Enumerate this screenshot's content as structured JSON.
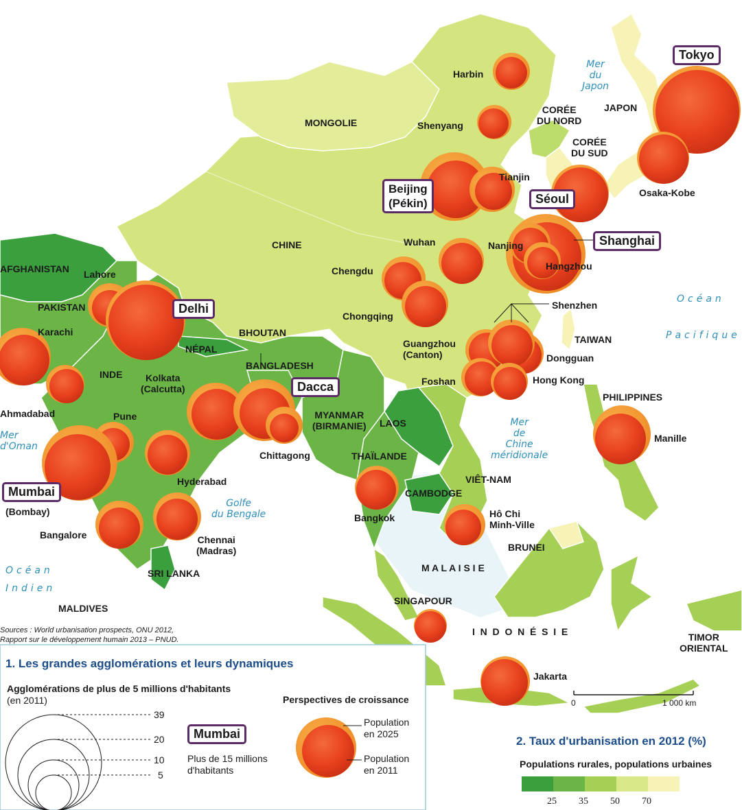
{
  "colors": {
    "sea": "#ffffff",
    "country_25": "#3b9f3e",
    "country_35": "#6bb546",
    "country_50": "#a6cf55",
    "country_70": "#d9e889",
    "country_max": "#f7f3b6",
    "city_2011": "#e8411e",
    "city_2025": "#f0922c",
    "frame": "#5b2a67",
    "legend_title": "#1c4d8a",
    "sea_text": "#2e8fb8"
  },
  "sources": {
    "line1": "Sources : World urbanisation prospects, ONU 2012,",
    "line2": "Rapport sur le développement humain 2013 – PNUD."
  },
  "countries": {
    "afghanistan": "AFGHANISTAN",
    "pakistan": "PAKISTAN",
    "inde": "INDE",
    "nepal": "NÉPAL",
    "bhoutan": "BHOUTAN",
    "bangladesh": "BANGLADESH",
    "chine": "CHINE",
    "mongolie": "MONGOLIE",
    "coree_nord": "CORÉE\nDU NORD",
    "coree_sud": "CORÉE\nDU SUD",
    "japon": "JAPON",
    "taiwan": "TAIWAN",
    "myanmar": "MYANMAR\n(BIRMANIE)",
    "laos": "LAOS",
    "thailande": "THAÏLANDE",
    "cambodge": "CAMBODGE",
    "vietnam": "VIÊT-NAM",
    "philippines": "PHILIPPINES",
    "brunei": "BRUNEI",
    "malaisie": "M A L A I S I E",
    "singapour": "SINGAPOUR",
    "indonesie": "I  N  D  O  N  É  S  I  E",
    "timor": "TIMOR\nORIENTAL",
    "sri_lanka": "SRI LANKA",
    "maldives": "MALDIVES"
  },
  "seas": {
    "mer_japon": "Mer\ndu\nJapon",
    "ocean_pacifique_1": "Océan",
    "ocean_pacifique_2": "Pacifique",
    "mer_chine": "Mer\nde\nChine\nméridionale",
    "golfe_bengale": "Golfe\ndu Bengale",
    "mer_oman": "Mer\nd'Oman",
    "ocean_indien_1": "Océan",
    "ocean_indien_2": "Indien"
  },
  "cities": [
    {
      "id": "harbin",
      "name": "Harbin"
    },
    {
      "id": "shenyang",
      "name": "Shenyang"
    },
    {
      "id": "tianjin",
      "name": "Tianjin"
    },
    {
      "id": "wuhan",
      "name": "Wuhan"
    },
    {
      "id": "nanjing",
      "name": "Nanjing"
    },
    {
      "id": "hangzhou",
      "name": "Hangzhou"
    },
    {
      "id": "chengdu",
      "name": "Chengdu"
    },
    {
      "id": "chongqing",
      "name": "Chongqing"
    },
    {
      "id": "shenzhen",
      "name": "Shenzhen"
    },
    {
      "id": "guangzhou",
      "name": "Guangzhou\n(Canton)"
    },
    {
      "id": "dongguan",
      "name": "Dongguan"
    },
    {
      "id": "foshan",
      "name": "Foshan"
    },
    {
      "id": "hongkong",
      "name": "Hong Kong"
    },
    {
      "id": "osaka",
      "name": "Osaka-Kobe"
    },
    {
      "id": "manille",
      "name": "Manille"
    },
    {
      "id": "bangkok",
      "name": "Bangkok"
    },
    {
      "id": "hochiminh",
      "name": "Hô Chi\nMinh-Ville"
    },
    {
      "id": "jakarta",
      "name": "Jakarta"
    },
    {
      "id": "lahore",
      "name": "Lahore"
    },
    {
      "id": "karachi",
      "name": "Karachi"
    },
    {
      "id": "ahmadabad",
      "name": "Ahmadabad"
    },
    {
      "id": "pune",
      "name": "Pune"
    },
    {
      "id": "kolkata",
      "name": "Kolkata\n(Calcutta)"
    },
    {
      "id": "chittagong",
      "name": "Chittagong"
    },
    {
      "id": "hyderabad",
      "name": "Hyderabad"
    },
    {
      "id": "bangalore",
      "name": "Bangalore"
    },
    {
      "id": "chennai",
      "name": "Chennai\n(Madras)"
    },
    {
      "id": "bombay",
      "name": "(Bombay)"
    }
  ],
  "megacities": [
    {
      "id": "tokyo",
      "name": "Tokyo"
    },
    {
      "id": "beijing",
      "name": "Beijing\n(Pékin)"
    },
    {
      "id": "seoul",
      "name": "Séoul"
    },
    {
      "id": "shanghai",
      "name": "Shanghai"
    },
    {
      "id": "delhi",
      "name": "Delhi"
    },
    {
      "id": "dacca",
      "name": "Dacca"
    },
    {
      "id": "mumbai",
      "name": "Mumbai"
    }
  ],
  "legend1": {
    "title": "1. Les grandes agglomérations et leurs dynamiques",
    "subtitle": "Agglomérations de plus de 5 millions d'habitants",
    "subtitle_year": "(en 2011)",
    "scale_values": [
      "39",
      "20",
      "10",
      "5"
    ],
    "mega_example": "Mumbai",
    "mega_desc": "Plus de 15 millions\nd'habitants",
    "growth_title": "Perspectives de croissance",
    "pop_2025": "Population\nen 2025",
    "pop_2011": "Population\nen 2011"
  },
  "scale_bar": {
    "start": "0",
    "end": "1 000 km"
  },
  "legend2": {
    "title": "2. Taux d'urbanisation en 2012 (%)",
    "subtitle": "Populations rurales, populations urbaines",
    "ticks": [
      "25",
      "35",
      "50",
      "70"
    ]
  }
}
